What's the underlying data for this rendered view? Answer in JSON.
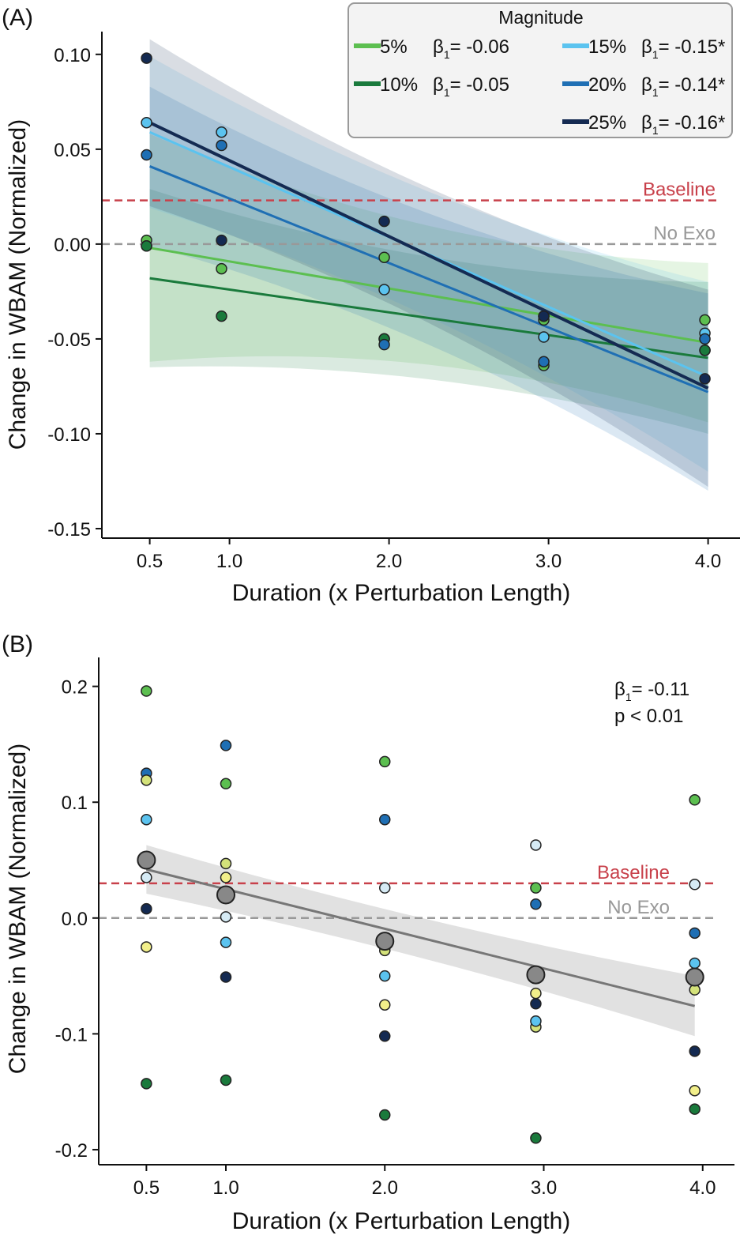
{
  "chart_data": [
    {
      "panel": "(A)",
      "type": "scatter",
      "xlabel": "Duration (x Perturbation Length)",
      "ylabel": "Change in WBAM (Normalized)",
      "xlim": [
        0.2,
        4.2
      ],
      "ylim": [
        -0.155,
        0.112
      ],
      "x_ticks": [
        0.5,
        1.0,
        2.0,
        3.0,
        4.0
      ],
      "x_tick_labels": [
        "0.5",
        "1.0",
        "2.0",
        "3.0",
        "4.0"
      ],
      "y_ticks": [
        0.1,
        0.05,
        0.0,
        -0.05,
        -0.1,
        -0.15
      ],
      "y_tick_labels": [
        "0.10",
        "0.05",
        "0.00",
        "-0.05",
        "-0.10",
        "-0.15"
      ],
      "legend_title": "Magnitude",
      "legend_position": "top-right",
      "grid": false,
      "reference_lines": [
        {
          "label": "Baseline",
          "y": 0.023,
          "color": "#c8414b"
        },
        {
          "label": "No Exo",
          "y": 0.0,
          "color": "#999999"
        }
      ],
      "series": [
        {
          "name": "5%",
          "beta_label": "β",
          "beta_sub": "1",
          "beta_value": "= -0.06",
          "color": "#5cbf50",
          "x": [
            0.48,
            0.48,
            0.95,
            1.97,
            1.97,
            2.97,
            2.97,
            3.98,
            3.98
          ],
          "y": [
            0.002,
            -0.001,
            -0.013,
            -0.007,
            -0.05,
            -0.04,
            -0.064,
            -0.04,
            -0.056
          ],
          "fit": {
            "x0": 0.5,
            "y0": -0.002,
            "x1": 4.0,
            "y1": -0.052,
            "ci0": 0.06,
            "ci1": 0.042
          }
        },
        {
          "name": "10%",
          "beta_label": "β",
          "beta_sub": "1",
          "beta_value": "= -0.05",
          "color": "#1a7a3c",
          "x": [
            0.48,
            0.95,
            1.97,
            2.97,
            3.98
          ],
          "y": [
            -0.001,
            -0.038,
            -0.05,
            -0.038,
            -0.056
          ],
          "fit": {
            "x0": 0.5,
            "y0": -0.018,
            "x1": 4.0,
            "y1": -0.06,
            "ci0": 0.047,
            "ci1": 0.04
          }
        },
        {
          "name": "15%",
          "beta_label": "β",
          "beta_sub": "1",
          "beta_value": "= -0.15*",
          "color": "#5bc3ef",
          "x": [
            0.48,
            0.95,
            1.97,
            2.97,
            3.98
          ],
          "y": [
            0.064,
            0.059,
            -0.024,
            -0.049,
            -0.047
          ],
          "fit": {
            "x0": 0.5,
            "y0": 0.059,
            "x1": 4.0,
            "y1": -0.07,
            "ci0": 0.04,
            "ci1": 0.05
          }
        },
        {
          "name": "20%",
          "beta_label": "β",
          "beta_sub": "1",
          "beta_value": "= -0.14*",
          "color": "#1f6fb4",
          "x": [
            0.48,
            0.95,
            1.97,
            2.97,
            3.98
          ],
          "y": [
            0.047,
            0.052,
            -0.053,
            -0.062,
            -0.05
          ],
          "fit": {
            "x0": 0.5,
            "y0": 0.041,
            "x1": 4.0,
            "y1": -0.078,
            "ci0": 0.042,
            "ci1": 0.052
          }
        },
        {
          "name": "25%",
          "beta_label": "β",
          "beta_sub": "1",
          "beta_value": "= -0.16*",
          "color": "#142a52",
          "x": [
            0.48,
            0.95,
            1.97,
            2.97,
            3.98
          ],
          "y": [
            0.098,
            0.002,
            0.012,
            -0.038,
            -0.071
          ],
          "fit": {
            "x0": 0.5,
            "y0": 0.064,
            "x1": 4.0,
            "y1": -0.076,
            "ci0": 0.044,
            "ci1": 0.052
          }
        }
      ]
    },
    {
      "panel": "(B)",
      "type": "scatter",
      "xlabel": "Duration (x Perturbation Length)",
      "ylabel": "Change in WBAM (Normalized)",
      "xlim": [
        0.2,
        4.2
      ],
      "ylim": [
        -0.213,
        0.225
      ],
      "x_ticks": [
        0.5,
        1.0,
        2.0,
        3.0,
        4.0
      ],
      "x_tick_labels": [
        "0.5",
        "1.0",
        "2.0",
        "3.0",
        "4.0"
      ],
      "y_ticks": [
        0.2,
        0.1,
        0.0,
        -0.1,
        -0.2
      ],
      "y_tick_labels": [
        "0.2",
        "0.1",
        "0.0",
        "-0.1",
        "-0.2"
      ],
      "grid": false,
      "annotation": {
        "beta_label": "β",
        "beta_sub": "1",
        "beta_value": "= -0.11",
        "p_text": "p < 0.01"
      },
      "reference_lines": [
        {
          "label": "Baseline",
          "y": 0.03,
          "color": "#c8414b"
        },
        {
          "label": "No Exo",
          "y": 0.0,
          "color": "#999999"
        }
      ],
      "points": [
        {
          "x": 0.5,
          "y": 0.196,
          "color": "#5cbf50"
        },
        {
          "x": 0.5,
          "y": 0.125,
          "color": "#1f6fb4"
        },
        {
          "x": 0.5,
          "y": 0.119,
          "color": "#d4e27a"
        },
        {
          "x": 0.5,
          "y": 0.085,
          "color": "#5bc3ef"
        },
        {
          "x": 0.5,
          "y": 0.035,
          "color": "#d6ebf5"
        },
        {
          "x": 0.5,
          "y": 0.008,
          "color": "#142a52"
        },
        {
          "x": 0.5,
          "y": -0.025,
          "color": "#f2ef8a"
        },
        {
          "x": 0.5,
          "y": -0.143,
          "color": "#1a7a3c"
        },
        {
          "x": 1.0,
          "y": 0.149,
          "color": "#1f6fb4"
        },
        {
          "x": 1.0,
          "y": 0.116,
          "color": "#5cbf50"
        },
        {
          "x": 1.0,
          "y": 0.047,
          "color": "#d4e27a"
        },
        {
          "x": 1.0,
          "y": 0.035,
          "color": "#f2ef8a"
        },
        {
          "x": 1.0,
          "y": 0.001,
          "color": "#d6ebf5"
        },
        {
          "x": 1.0,
          "y": -0.021,
          "color": "#5bc3ef"
        },
        {
          "x": 1.0,
          "y": -0.051,
          "color": "#142a52"
        },
        {
          "x": 1.0,
          "y": -0.14,
          "color": "#1a7a3c"
        },
        {
          "x": 2.0,
          "y": 0.135,
          "color": "#5cbf50"
        },
        {
          "x": 2.0,
          "y": 0.085,
          "color": "#1f6fb4"
        },
        {
          "x": 2.0,
          "y": 0.026,
          "color": "#d6ebf5"
        },
        {
          "x": 2.0,
          "y": -0.028,
          "color": "#d4e27a"
        },
        {
          "x": 2.0,
          "y": -0.05,
          "color": "#5bc3ef"
        },
        {
          "x": 2.0,
          "y": -0.075,
          "color": "#f2ef8a"
        },
        {
          "x": 2.0,
          "y": -0.102,
          "color": "#142a52"
        },
        {
          "x": 2.0,
          "y": -0.17,
          "color": "#1a7a3c"
        },
        {
          "x": 2.95,
          "y": 0.063,
          "color": "#d6ebf5"
        },
        {
          "x": 2.95,
          "y": 0.026,
          "color": "#5cbf50"
        },
        {
          "x": 2.95,
          "y": 0.012,
          "color": "#1f6fb4"
        },
        {
          "x": 2.95,
          "y": -0.065,
          "color": "#f2ef8a"
        },
        {
          "x": 2.95,
          "y": -0.074,
          "color": "#142a52"
        },
        {
          "x": 2.95,
          "y": -0.094,
          "color": "#d4e27a"
        },
        {
          "x": 2.95,
          "y": -0.089,
          "color": "#5bc3ef"
        },
        {
          "x": 2.95,
          "y": -0.19,
          "color": "#1a7a3c"
        },
        {
          "x": 3.95,
          "y": 0.102,
          "color": "#5cbf50"
        },
        {
          "x": 3.95,
          "y": 0.029,
          "color": "#d6ebf5"
        },
        {
          "x": 3.95,
          "y": -0.013,
          "color": "#1f6fb4"
        },
        {
          "x": 3.95,
          "y": -0.039,
          "color": "#5bc3ef"
        },
        {
          "x": 3.95,
          "y": -0.062,
          "color": "#d4e27a"
        },
        {
          "x": 3.95,
          "y": -0.115,
          "color": "#142a52"
        },
        {
          "x": 3.95,
          "y": -0.149,
          "color": "#f2ef8a"
        },
        {
          "x": 3.95,
          "y": -0.165,
          "color": "#1a7a3c"
        }
      ],
      "means": {
        "x": [
          0.5,
          1.0,
          2.0,
          2.95,
          3.95
        ],
        "y": [
          0.05,
          0.02,
          -0.02,
          -0.049,
          -0.051
        ],
        "color": "#888888"
      },
      "fit": {
        "x0": 0.5,
        "y0": 0.042,
        "x1": 3.95,
        "y1": -0.076,
        "ci0": 0.021,
        "ci1": 0.026,
        "color": "#777777"
      }
    }
  ]
}
